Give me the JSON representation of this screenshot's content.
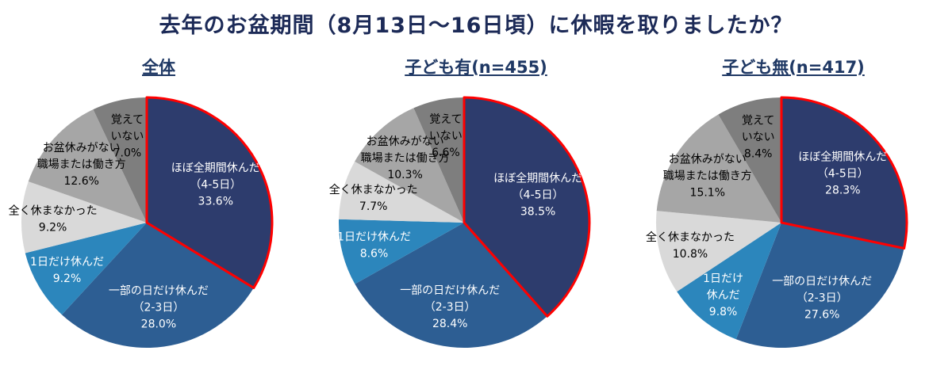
{
  "page": {
    "title": "去年のお盆期間（8月13日〜16日頃）に休暇を取りましたか？"
  },
  "colors": {
    "slices": [
      "#2d3c6d",
      "#2d5e93",
      "#2c86bc",
      "#d9d9d9",
      "#a6a6a6",
      "#7e7e7e"
    ],
    "highlight_outline": "#ff0000",
    "title_text": "#1c2a57",
    "chart_title_text": "#1f3864"
  },
  "chart_data": [
    {
      "type": "pie",
      "title": "全体",
      "highlight_index": 0,
      "slices": [
        {
          "label": "ほぼ全期間休んだ（4-5日）",
          "lines": [
            "ほぼ全期間休んだ",
            "（4-5日）"
          ],
          "value": 33.6
        },
        {
          "label": "一部の日だけ休んだ（2-3日）",
          "lines": [
            "一部の日だけ休んだ",
            "（2-3日）"
          ],
          "value": 28.0
        },
        {
          "label": "1日だけ休んだ",
          "lines": [
            "1日だけ休んだ"
          ],
          "value": 9.2
        },
        {
          "label": "全く休まなかった",
          "lines": [
            "全く休まなかった"
          ],
          "value": 9.2
        },
        {
          "label": "お盆休みがない職場または働き方",
          "lines": [
            "お盆休みがない",
            "職場または働き方"
          ],
          "value": 12.6
        },
        {
          "label": "覚えていない",
          "lines": [
            "覚えて",
            "いない"
          ],
          "value": 7.0
        }
      ]
    },
    {
      "type": "pie",
      "title": "子ども有(n=455)",
      "highlight_index": 0,
      "slices": [
        {
          "label": "ほぼ全期間休んだ（4-5日）",
          "lines": [
            "ほぼ全期間休んだ",
            "（4-5日）"
          ],
          "value": 38.5
        },
        {
          "label": "一部の日だけ休んだ（2-3日）",
          "lines": [
            "一部の日だけ休んだ",
            "（2-3日）"
          ],
          "value": 28.4
        },
        {
          "label": "1日だけ休んだ",
          "lines": [
            "1日だけ休んだ"
          ],
          "value": 8.6
        },
        {
          "label": "全く休まなかった",
          "lines": [
            "全く休まなかった"
          ],
          "value": 7.7
        },
        {
          "label": "お盆休みがない職場または働き方",
          "lines": [
            "お盆休みがない",
            "職場または働き方"
          ],
          "value": 10.3
        },
        {
          "label": "覚えていない",
          "lines": [
            "覚えて",
            "いない"
          ],
          "value": 6.6
        }
      ]
    },
    {
      "type": "pie",
      "title": "子ども無(n=417)",
      "highlight_index": 0,
      "slices": [
        {
          "label": "ほぼ全期間休んだ（4-5日）",
          "lines": [
            "ほぼ全期間休んだ",
            "（4-5日）"
          ],
          "value": 28.3
        },
        {
          "label": "一部の日だけ休んだ（2-3日）",
          "lines": [
            "一部の日だけ休んだ",
            "（2-3日）"
          ],
          "value": 27.6
        },
        {
          "label": "1日だけ休んだ",
          "lines": [
            "1日だけ",
            "休んだ"
          ],
          "value": 9.8
        },
        {
          "label": "全く休まなかった",
          "lines": [
            "全く休まなかった"
          ],
          "value": 10.8
        },
        {
          "label": "お盆休みがない職場または働き方",
          "lines": [
            "お盆休みがない",
            "職場または働き方"
          ],
          "value": 15.1
        },
        {
          "label": "覚えていない",
          "lines": [
            "覚えて",
            "いない"
          ],
          "value": 8.4
        }
      ]
    }
  ]
}
